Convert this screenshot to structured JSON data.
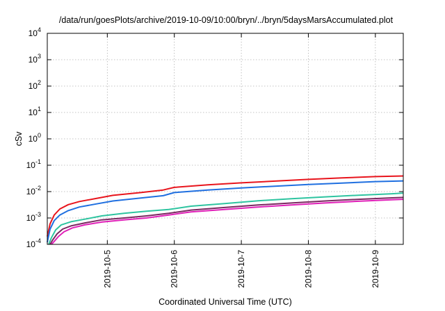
{
  "chart_data": {
    "type": "line",
    "title": "/data/run/goesPlots/archive/2019-10-09/10:00/bryn/../bryn/5daysMarsAccumulated.plot",
    "xlabel": "Coordinated Universal Time (UTC)",
    "ylabel": "cSv",
    "yscale": "log",
    "ylim": [
      0.0001,
      10000
    ],
    "xlim": [
      "2019-10-04T02:30",
      "2019-10-09T10:00"
    ],
    "grid": true,
    "x_ticks": [
      "2019-10-5",
      "2019-10-6",
      "2019-10-7",
      "2019-10-8",
      "2019-10-9"
    ],
    "y_ticks": [
      {
        "value": 0.0001,
        "base": "10",
        "exp": "-4"
      },
      {
        "value": 0.001,
        "base": "10",
        "exp": "-3"
      },
      {
        "value": 0.01,
        "base": "10",
        "exp": "-2"
      },
      {
        "value": 0.1,
        "base": "10",
        "exp": "-1"
      },
      {
        "value": 1,
        "base": "10",
        "exp": "0"
      },
      {
        "value": 10,
        "base": "10",
        "exp": "1"
      },
      {
        "value": 100,
        "base": "10",
        "exp": "2"
      },
      {
        "value": 1000,
        "base": "10",
        "exp": "3"
      },
      {
        "value": 10000,
        "base": "10",
        "exp": "4"
      }
    ],
    "series": [
      {
        "color": "#e8141c",
        "x": [
          "2019-10-04T02:30",
          "2019-10-04T03:30",
          "2019-10-04T05:00",
          "2019-10-04T07:00",
          "2019-10-04T10:00",
          "2019-10-04T14:00",
          "2019-10-04T20:00",
          "2019-10-05T02:00",
          "2019-10-05T12:00",
          "2019-10-05T20:00",
          "2019-10-06T00:00",
          "2019-10-06T12:00",
          "2019-10-07T00:00",
          "2019-10-07T12:00",
          "2019-10-08T00:00",
          "2019-10-08T12:00",
          "2019-10-09T00:00",
          "2019-10-09T10:00"
        ],
        "y": [
          0.0002,
          0.0006,
          0.0013,
          0.0022,
          0.0032,
          0.0042,
          0.0055,
          0.0072,
          0.0092,
          0.0115,
          0.0145,
          0.018,
          0.0215,
          0.025,
          0.029,
          0.033,
          0.037,
          0.039
        ]
      },
      {
        "color": "#1f6fe0",
        "x": [
          "2019-10-04T02:30",
          "2019-10-04T03:30",
          "2019-10-04T05:00",
          "2019-10-04T07:00",
          "2019-10-04T10:00",
          "2019-10-04T14:00",
          "2019-10-04T20:00",
          "2019-10-05T02:00",
          "2019-10-05T12:00",
          "2019-10-05T20:00",
          "2019-10-06T00:00",
          "2019-10-06T12:00",
          "2019-10-07T00:00",
          "2019-10-07T12:00",
          "2019-10-08T00:00",
          "2019-10-08T12:00",
          "2019-10-09T00:00",
          "2019-10-09T10:00"
        ],
        "y": [
          0.00012,
          0.00038,
          0.0008,
          0.0013,
          0.0019,
          0.0026,
          0.0034,
          0.0044,
          0.0057,
          0.007,
          0.0092,
          0.0115,
          0.0138,
          0.016,
          0.0185,
          0.021,
          0.024,
          0.0255
        ]
      },
      {
        "color": "#2ec4a0",
        "x": [
          "2019-10-04T03:00",
          "2019-10-04T04:00",
          "2019-10-04T05:30",
          "2019-10-04T07:30",
          "2019-10-04T11:00",
          "2019-10-04T16:00",
          "2019-10-04T22:00",
          "2019-10-05T06:00",
          "2019-10-05T14:00",
          "2019-10-05T22:00",
          "2019-10-06T06:00",
          "2019-10-06T18:00",
          "2019-10-07T06:00",
          "2019-10-07T18:00",
          "2019-10-08T06:00",
          "2019-10-08T18:00",
          "2019-10-09T06:00",
          "2019-10-09T10:00"
        ],
        "y": [
          0.0001,
          0.00018,
          0.00035,
          0.00055,
          0.00072,
          0.0009,
          0.0012,
          0.0015,
          0.0018,
          0.0021,
          0.0028,
          0.0035,
          0.0045,
          0.0054,
          0.0063,
          0.0073,
          0.0083,
          0.0088
        ]
      },
      {
        "color": "#7a2860",
        "x": [
          "2019-10-04T03:30",
          "2019-10-04T04:30",
          "2019-10-04T06:00",
          "2019-10-04T08:00",
          "2019-10-04T11:00",
          "2019-10-04T16:00",
          "2019-10-04T22:00",
          "2019-10-05T06:00",
          "2019-10-05T14:00",
          "2019-10-05T22:00",
          "2019-10-06T06:00",
          "2019-10-06T18:00",
          "2019-10-07T06:00",
          "2019-10-07T18:00",
          "2019-10-08T06:00",
          "2019-10-08T18:00",
          "2019-10-09T06:00",
          "2019-10-09T10:00"
        ],
        "y": [
          0.0001,
          0.00015,
          0.00025,
          0.00038,
          0.0005,
          0.00065,
          0.00085,
          0.001,
          0.0012,
          0.0015,
          0.002,
          0.0025,
          0.0031,
          0.0037,
          0.0044,
          0.0051,
          0.0058,
          0.006
        ]
      },
      {
        "color": "#e020b8",
        "x": [
          "2019-10-04T04:00",
          "2019-10-04T05:00",
          "2019-10-04T06:30",
          "2019-10-04T08:30",
          "2019-10-04T11:30",
          "2019-10-04T16:00",
          "2019-10-04T22:00",
          "2019-10-05T06:00",
          "2019-10-05T14:00",
          "2019-10-05T22:00",
          "2019-10-06T06:00",
          "2019-10-06T18:00",
          "2019-10-07T06:00",
          "2019-10-07T18:00",
          "2019-10-08T06:00",
          "2019-10-08T18:00",
          "2019-10-09T06:00",
          "2019-10-09T10:00"
        ],
        "y": [
          0.0001,
          0.00013,
          0.0002,
          0.0003,
          0.00042,
          0.00055,
          0.0007,
          0.00085,
          0.001,
          0.0013,
          0.0017,
          0.0021,
          0.0026,
          0.0031,
          0.0037,
          0.0043,
          0.0049,
          0.0051
        ]
      }
    ]
  }
}
